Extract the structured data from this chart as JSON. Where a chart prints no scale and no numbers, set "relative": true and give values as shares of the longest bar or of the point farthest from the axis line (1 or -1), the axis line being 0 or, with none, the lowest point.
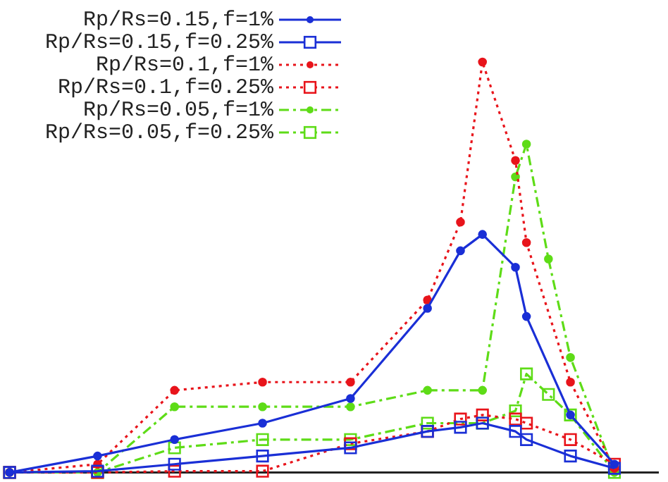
{
  "chart_data": {
    "type": "line",
    "relative": true,
    "legend": "top left",
    "tick_labels": false,
    "grid": false,
    "categories": [
      null,
      null,
      null,
      null,
      null,
      null,
      null,
      null,
      null,
      null,
      null,
      null,
      null,
      null,
      null,
      null,
      null,
      null,
      null,
      null,
      null,
      null,
      null,
      null,
      null,
      null,
      null,
      null,
      null,
      null,
      null,
      null,
      null,
      null,
      null,
      null,
      null,
      null,
      null,
      null,
      null,
      null,
      null,
      null,
      null,
      null,
      null,
      null,
      null,
      null,
      null,
      null,
      null,
      null,
      null,
      null,
      null,
      null,
      null,
      null
    ],
    "series": [
      {
        "name": "Rp/Rs=0.15,f=1%",
        "color": "#1a2fd6",
        "marker": "circle",
        "line_style": "solid",
        "values": [
          0,
          null,
          null,
          null,
          null,
          null,
          null,
          null,
          0.04,
          null,
          null,
          null,
          null,
          null,
          null,
          0.08,
          null,
          null,
          null,
          null,
          null,
          null,
          null,
          0.12,
          null,
          null,
          null,
          null,
          null,
          null,
          null,
          0.18,
          null,
          null,
          null,
          null,
          null,
          null,
          0.4,
          null,
          null,
          0.54,
          null,
          0.58,
          null,
          null,
          0.5,
          0.38,
          null,
          null,
          null,
          0.14,
          null,
          null,
          null,
          0.02,
          null,
          null,
          null,
          null
        ]
      },
      {
        "name": "Rp/Rs=0.15,f=0.25%",
        "color": "#1a2fd6",
        "marker": "square",
        "line_style": "solid",
        "values": [
          0,
          null,
          null,
          null,
          null,
          null,
          null,
          null,
          0.003,
          null,
          null,
          null,
          null,
          null,
          null,
          0.02,
          null,
          null,
          null,
          null,
          null,
          null,
          null,
          0.04,
          null,
          null,
          null,
          null,
          null,
          null,
          null,
          0.06,
          null,
          null,
          null,
          null,
          null,
          null,
          0.1,
          null,
          null,
          0.11,
          null,
          0.12,
          null,
          null,
          0.1,
          0.08,
          null,
          null,
          null,
          0.04,
          null,
          null,
          null,
          0.01,
          null,
          null,
          null,
          null
        ]
      },
      {
        "name": "Rp/Rs=0.1,f=1%",
        "color": "#e8141b",
        "marker": "circle",
        "line_style": "dotted",
        "values": [
          0,
          null,
          null,
          null,
          null,
          null,
          null,
          null,
          0.02,
          null,
          null,
          null,
          null,
          null,
          null,
          0.2,
          null,
          null,
          null,
          null,
          null,
          null,
          null,
          0.22,
          null,
          null,
          null,
          null,
          null,
          null,
          null,
          0.22,
          null,
          null,
          null,
          null,
          null,
          null,
          0.42,
          null,
          null,
          0.61,
          null,
          1,
          null,
          null,
          0.76,
          0.56,
          null,
          null,
          null,
          0.22,
          null,
          null,
          null,
          0.01,
          null,
          null,
          null,
          null
        ]
      },
      {
        "name": "Rp/Rs=0.1,f=0.25%",
        "color": "#e8141b",
        "marker": "square",
        "line_style": "dotted",
        "values": [
          0,
          null,
          null,
          null,
          null,
          null,
          null,
          null,
          0,
          null,
          null,
          null,
          null,
          null,
          null,
          0.003,
          null,
          null,
          null,
          null,
          null,
          null,
          null,
          0.003,
          null,
          null,
          null,
          null,
          null,
          null,
          null,
          0.07,
          null,
          null,
          null,
          null,
          null,
          null,
          0.1,
          null,
          null,
          0.13,
          null,
          0.14,
          null,
          null,
          0.13,
          0.12,
          null,
          null,
          null,
          0.08,
          null,
          null,
          null,
          0.02,
          null,
          null,
          null,
          null
        ]
      },
      {
        "name": "Rp/Rs=0.05,f=1%",
        "color": "#5edc17",
        "marker": "circle",
        "line_style": "dashed",
        "values": [
          0,
          null,
          null,
          null,
          null,
          null,
          null,
          null,
          0,
          null,
          null,
          null,
          null,
          null,
          null,
          0.16,
          null,
          null,
          null,
          null,
          null,
          null,
          null,
          0.16,
          null,
          null,
          null,
          null,
          null,
          null,
          null,
          0.16,
          null,
          null,
          null,
          null,
          null,
          null,
          0.2,
          null,
          null,
          null,
          null,
          0.2,
          null,
          null,
          0.72,
          0.8,
          null,
          0.52,
          null,
          0.28,
          null,
          null,
          null,
          0,
          null,
          null,
          null,
          null
        ]
      },
      {
        "name": "Rp/Rs=0.05,f=0.25%",
        "color": "#5edc17",
        "marker": "square",
        "line_style": "dashed",
        "values": [
          0,
          null,
          null,
          null,
          null,
          null,
          null,
          null,
          0,
          null,
          null,
          null,
          null,
          null,
          null,
          0.06,
          null,
          null,
          null,
          null,
          null,
          null,
          null,
          0.08,
          null,
          null,
          null,
          null,
          null,
          null,
          null,
          0.08,
          null,
          null,
          null,
          null,
          null,
          null,
          0.12,
          null,
          null,
          null,
          null,
          0.12,
          null,
          null,
          0.15,
          0.24,
          null,
          0.19,
          null,
          0.14,
          null,
          null,
          null,
          0,
          null,
          null,
          null,
          null
        ]
      }
    ]
  }
}
